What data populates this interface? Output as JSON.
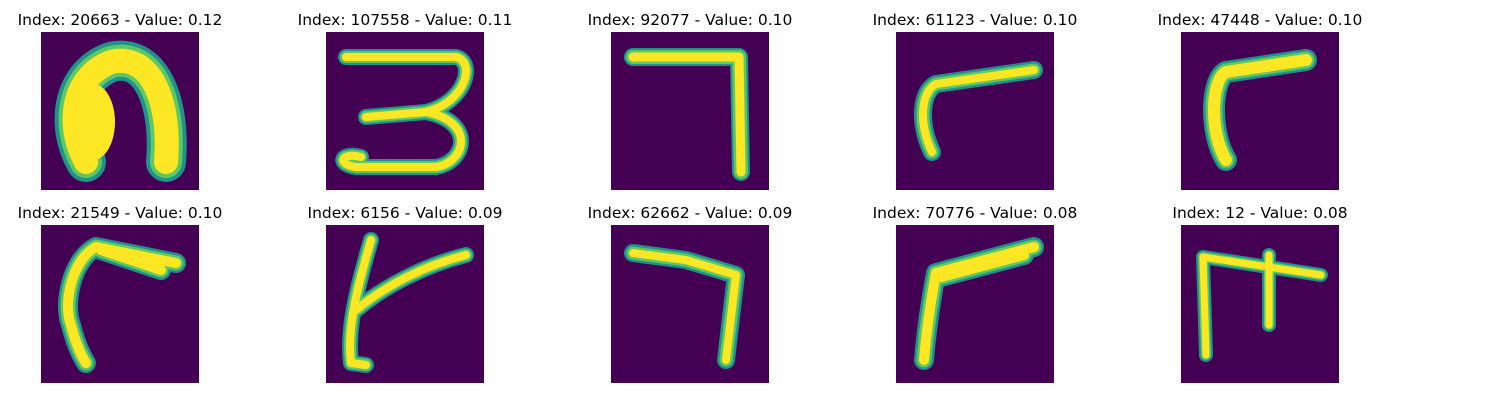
{
  "figure": {
    "panels": [
      {
        "title": "Index: 20663 - Value: 0.12",
        "glyph": "blob-arch-glyph"
      },
      {
        "title": "Index: 107558 - Value: 0.11",
        "glyph": "three-glyph"
      },
      {
        "title": "Index: 92077 - Value: 0.10",
        "glyph": "seven-glyph"
      },
      {
        "title": "Index: 61123 - Value: 0.10",
        "glyph": "hook-glyph"
      },
      {
        "title": "Index: 47448 - Value: 0.10",
        "glyph": "hook-glyph"
      },
      {
        "title": "Index: 21549 - Value: 0.10",
        "glyph": "hook-glyph"
      },
      {
        "title": "Index: 6156 - Value: 0.09",
        "glyph": "branch-glyph"
      },
      {
        "title": "Index: 62662 - Value: 0.09",
        "glyph": "seven-glyph"
      },
      {
        "title": "Index: 70776 - Value: 0.08",
        "glyph": "hook-glyph"
      },
      {
        "title": "Index: 12 - Value: 0.08",
        "glyph": "branch-glyph"
      }
    ],
    "colors": {
      "background": "#440154",
      "outer": "#21918c",
      "mid": "#5ec962",
      "core": "#fde725"
    }
  }
}
